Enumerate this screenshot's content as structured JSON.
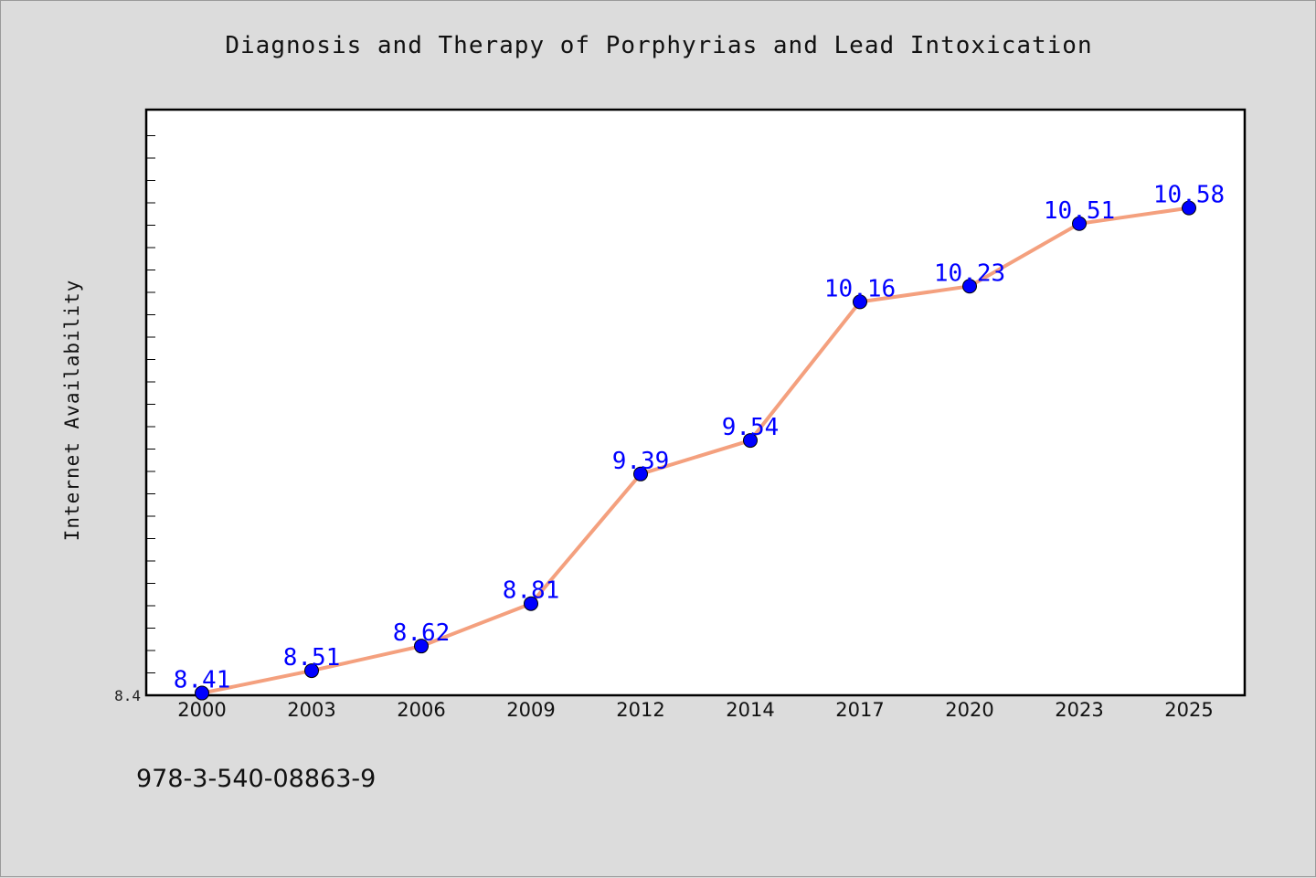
{
  "title": "Diagnosis and Therapy of Porphyrias and Lead Intoxication",
  "footer_text": "978-3-540-08863-9",
  "colors": {
    "background": "#dcdcdc",
    "plot_background": "#ffffff",
    "line": "#f4a07e",
    "marker": "#0000ff",
    "data_label": "#0000ff"
  },
  "chart_data": {
    "type": "line",
    "title": "Diagnosis and Therapy of Porphyrias and Lead Intoxication",
    "xlabel": "",
    "ylabel": "Internet Availability",
    "categories": [
      "2000",
      "2003",
      "2006",
      "2009",
      "2012",
      "2014",
      "2017",
      "2020",
      "2023",
      "2025"
    ],
    "series": [
      {
        "values": [
          8.41,
          8.51,
          8.62,
          8.81,
          9.39,
          9.54,
          10.16,
          10.23,
          10.51,
          10.58
        ]
      }
    ],
    "data_labels": [
      "8.41",
      "8.51",
      "8.62",
      "8.81",
      "9.39",
      "9.54",
      "10.16",
      "10.23",
      "10.51",
      "10.58"
    ],
    "ylim": [
      8.4,
      11.02
    ],
    "y_tick_labels": [
      "8.4"
    ],
    "grid": false,
    "legend": "none"
  }
}
